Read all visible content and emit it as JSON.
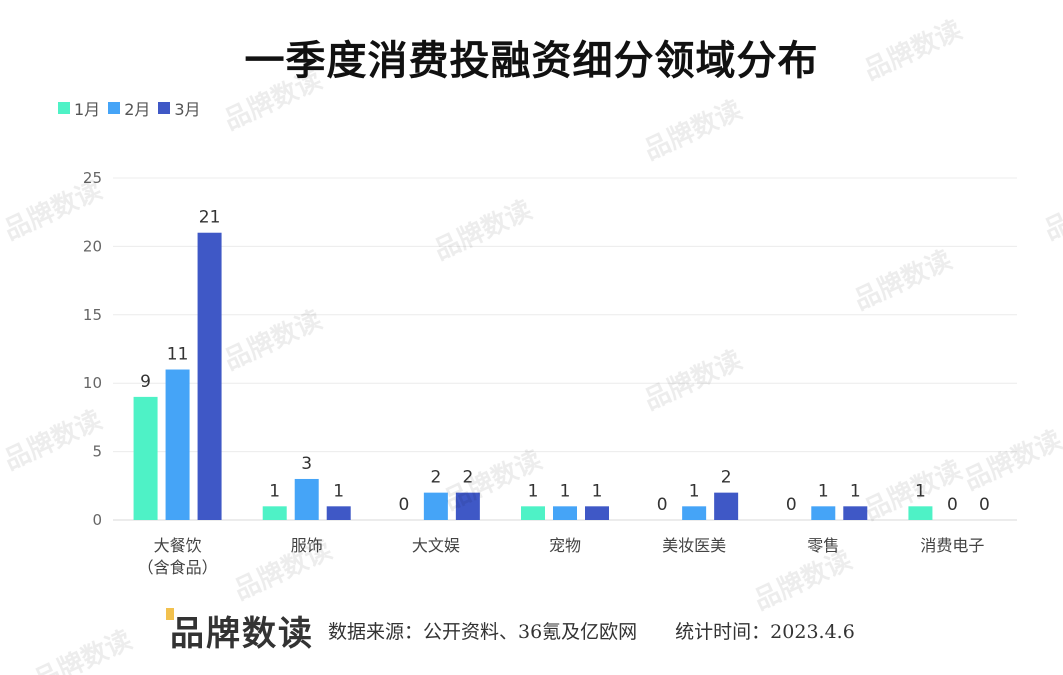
{
  "chart_data": {
    "type": "bar",
    "title": "一季度消费投融资细分领域分布",
    "categories": [
      "大餐饮\n（含食品）",
      "服饰",
      "大文娱",
      "宠物",
      "美妆医美",
      "零售",
      "消费电子"
    ],
    "series": [
      {
        "name": "1月",
        "color": "#4ef2c6",
        "values": [
          9,
          1,
          0,
          1,
          0,
          0,
          1
        ]
      },
      {
        "name": "2月",
        "color": "#45a4f7",
        "values": [
          11,
          3,
          2,
          1,
          1,
          1,
          0
        ]
      },
      {
        "name": "3月",
        "color": "#3f58c6",
        "values": [
          21,
          1,
          2,
          1,
          2,
          1,
          0
        ]
      }
    ],
    "ylim": [
      0,
      25
    ],
    "yticks": [
      0,
      5,
      10,
      15,
      20,
      25
    ],
    "grid": true,
    "legend": "top-left",
    "data_labels": true
  },
  "footer": {
    "logo": "品牌数读",
    "source": "数据来源：公开资料、36氪及亿欧网　　统计时间：2023.4.6"
  },
  "watermark": "品牌数读"
}
